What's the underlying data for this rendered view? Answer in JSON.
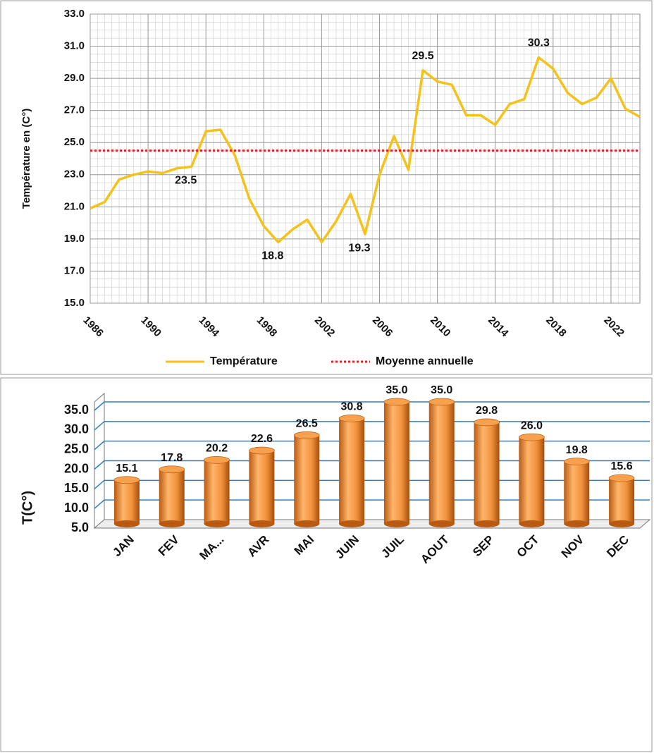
{
  "chart_data": [
    {
      "type": "line",
      "y_label": "Température en (C°)",
      "x": [
        1986,
        1987,
        1988,
        1989,
        1990,
        1991,
        1992,
        1993,
        1994,
        1995,
        1996,
        1997,
        1998,
        1999,
        2000,
        2001,
        2002,
        2003,
        2004,
        2005,
        2006,
        2007,
        2008,
        2009,
        2010,
        2011,
        2012,
        2013,
        2014,
        2015,
        2016,
        2017,
        2018,
        2019,
        2020,
        2021,
        2022,
        2023,
        2024
      ],
      "series": [
        {
          "name": "Température",
          "color": "#f5c21b",
          "values": [
            20.9,
            21.3,
            22.7,
            23.0,
            23.2,
            23.1,
            23.4,
            23.5,
            25.7,
            25.8,
            24.2,
            21.5,
            19.8,
            18.8,
            19.6,
            20.2,
            18.8,
            20.1,
            21.8,
            19.3,
            23.0,
            25.4,
            23.3,
            29.5,
            28.8,
            28.6,
            26.7,
            26.7,
            26.1,
            27.4,
            27.7,
            30.3,
            29.6,
            28.1,
            27.4,
            27.8,
            29.0,
            27.1,
            26.6
          ],
          "value_labels": [
            null,
            null,
            null,
            null,
            null,
            null,
            null,
            "23.5",
            null,
            null,
            null,
            null,
            null,
            "18.8",
            null,
            null,
            null,
            null,
            null,
            "19.3",
            null,
            null,
            null,
            "29.5",
            null,
            null,
            null,
            null,
            null,
            null,
            null,
            "30.3",
            null,
            null,
            null,
            null,
            null,
            null,
            null
          ]
        },
        {
          "name": "Moyenne annuelle",
          "color": "#d9262b",
          "style": "dotted",
          "value": 24.5
        }
      ],
      "xlim": [
        1986,
        2024
      ],
      "xticks": [
        1986,
        1990,
        1994,
        1998,
        2002,
        2006,
        2010,
        2014,
        2018,
        2022
      ],
      "ylim": [
        15,
        33
      ],
      "yticks": [
        {
          "value": 15,
          "label": "15.0"
        },
        {
          "value": 17,
          "label": "17.0"
        },
        {
          "value": 19,
          "label": "19.0"
        },
        {
          "value": 21,
          "label": "21.0"
        },
        {
          "value": 23,
          "label": "23.0"
        },
        {
          "value": 25,
          "label": "25.0"
        },
        {
          "value": 27,
          "label": "27.0"
        },
        {
          "value": 29,
          "label": "29.0"
        },
        {
          "value": 31,
          "label": "31.0"
        },
        {
          "value": 33,
          "label": "33.0"
        }
      ],
      "grid": true,
      "legend": "bottom"
    },
    {
      "type": "bar",
      "y_label": "T(C°)",
      "categories": [
        "JAN",
        "FEV",
        "MA...",
        "AVR",
        "MAI",
        "JUIN",
        "JUIL",
        "AOUT",
        "SEP",
        "OCT",
        "NOV",
        "DEC"
      ],
      "values": [
        15.1,
        17.8,
        20.2,
        22.6,
        26.5,
        30.8,
        35.0,
        35.0,
        29.8,
        26.0,
        19.8,
        15.6
      ],
      "value_labels": [
        "15.1",
        "17.8",
        "20.2",
        "22.6",
        "26.5",
        "30.8",
        "35.0",
        "35.0",
        "29.8",
        "26.0",
        "19.8",
        "15.6"
      ],
      "color": "#f0913a",
      "ylim": [
        5,
        35
      ],
      "yticks": [
        {
          "value": 5,
          "label": "5.0"
        },
        {
          "value": 10,
          "label": "10.0"
        },
        {
          "value": 15,
          "label": "15.0"
        },
        {
          "value": 20,
          "label": "20.0"
        },
        {
          "value": 25,
          "label": "25.0"
        },
        {
          "value": 30,
          "label": "30.0"
        },
        {
          "value": 35,
          "label": "35.0"
        }
      ],
      "grid": true
    }
  ]
}
